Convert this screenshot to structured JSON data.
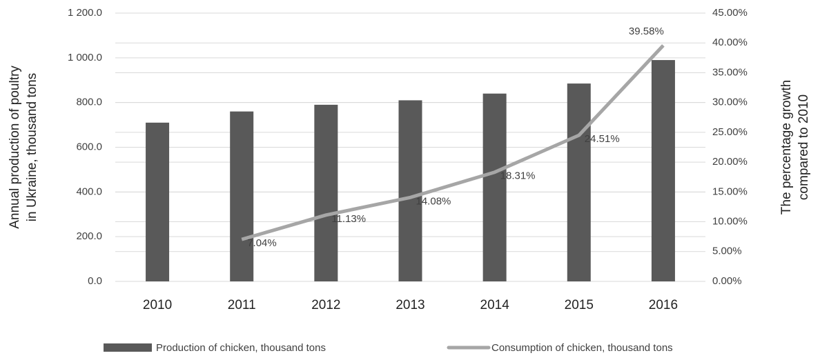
{
  "chart_data": {
    "type": "bar_line",
    "y_label": [
      "Annual production of poultry",
      "in Ukraine, thousand tons"
    ],
    "y2_label": [
      "The percentage growth",
      "compared to 2010"
    ],
    "categories": [
      "2010",
      "2011",
      "2012",
      "2013",
      "2014",
      "2015",
      "2016"
    ],
    "series": [
      {
        "name": "Production of chicken, thousand tons",
        "type": "bar",
        "color": "#595959",
        "values": [
          710,
          760,
          790,
          810,
          840,
          885,
          990
        ]
      },
      {
        "name": "Consumption of chicken, thousand tons",
        "type": "line",
        "axis": "y2",
        "color": "#a6a6a6",
        "values": [
          null,
          7.04,
          11.13,
          14.08,
          18.31,
          24.51,
          39.58
        ],
        "value_labels": [
          null,
          "7.04%",
          "11.13%",
          "14.08%",
          "18.31%",
          "24.51%",
          "39.58%"
        ]
      }
    ],
    "ylim": [
      0,
      1200
    ],
    "yticks": [
      {
        "value": 0,
        "label": "0.0"
      },
      {
        "value": 200,
        "label": "200.0"
      },
      {
        "value": 400,
        "label": "400.0"
      },
      {
        "value": 600,
        "label": "600.0"
      },
      {
        "value": 800,
        "label": "800.0"
      },
      {
        "value": 1000,
        "label": "1 000.0"
      },
      {
        "value": 1200,
        "label": "1 200.0"
      }
    ],
    "y2lim": [
      0,
      45
    ],
    "y2ticks": [
      {
        "value": 0,
        "label": "0.00%"
      },
      {
        "value": 5,
        "label": "5.00%"
      },
      {
        "value": 10,
        "label": "10.00%"
      },
      {
        "value": 15,
        "label": "15.00%"
      },
      {
        "value": 20,
        "label": "20.00%"
      },
      {
        "value": 25,
        "label": "25.00%"
      },
      {
        "value": 30,
        "label": "30.00%"
      },
      {
        "value": 35,
        "label": "35.00%"
      },
      {
        "value": 40,
        "label": "40.00%"
      },
      {
        "value": 45,
        "label": "45.00%"
      }
    ],
    "grid": true,
    "legend": "bottom"
  }
}
